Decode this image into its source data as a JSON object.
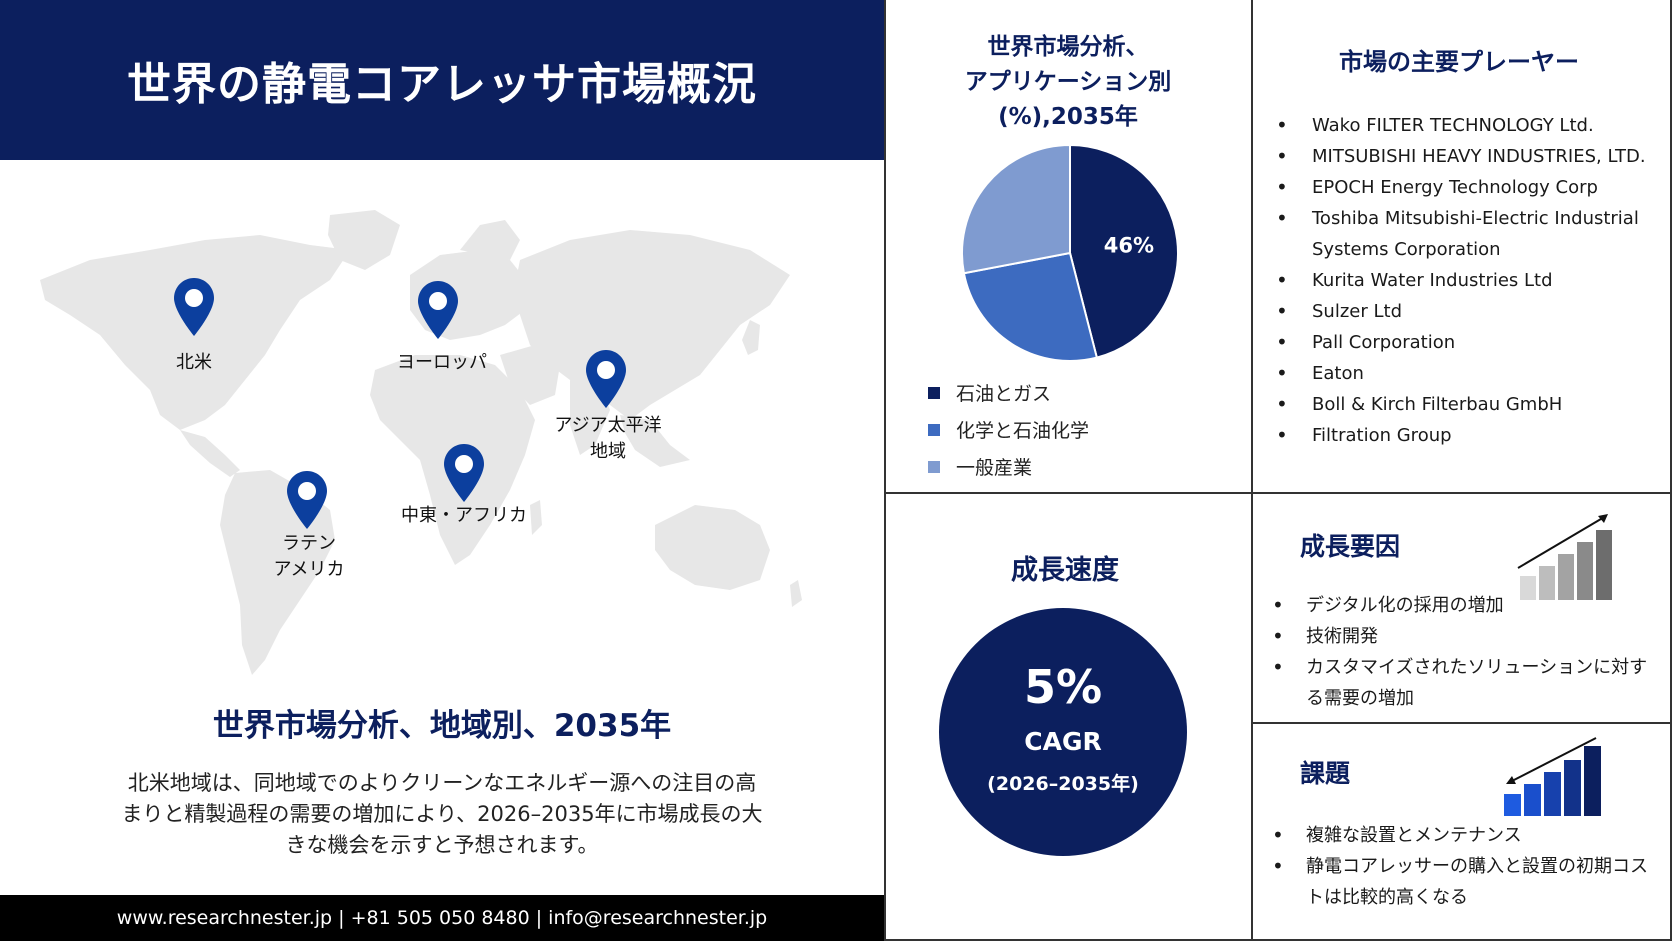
{
  "header": {
    "title": "世界の静電コアレッサ市場概況"
  },
  "map": {
    "pins": [
      {
        "label": "北米"
      },
      {
        "label": "ヨーロッパ"
      },
      {
        "label": "アジア太平洋\n地域"
      },
      {
        "label": "中東・アフリカ"
      },
      {
        "label": "ラテン\nアメリカ"
      }
    ]
  },
  "region_section": {
    "title": "世界市場分析、地域別、2035年",
    "description": "北米地域は、同地域でのよりクリーンなエネルギー源への注目の高まりと精製過程の需要の増加により、2026–2035年に市場成長の大きな機会を示すと予想されます。"
  },
  "footer": {
    "text": "www.researchnester.jp | +81 505 050 8480 | info@researchnester.jp"
  },
  "chart_data": {
    "type": "pie",
    "title": "世界市場分析、\nアプリケーション別\n(%),2035年",
    "categories": [
      "石油とガス",
      "化学と石油化学",
      "一般産業"
    ],
    "values": [
      46,
      26,
      28
    ],
    "data_labels": [
      "46%",
      "",
      ""
    ],
    "colors": [
      "#0c1f5e",
      "#3d6bc0",
      "#7f9bd0"
    ],
    "legend_position": "bottom-left"
  },
  "players": {
    "title": "市場の主要プレーヤー",
    "items": [
      "Wako FILTER TECHNOLOGY Ltd.",
      "MITSUBISHI HEAVY INDUSTRIES, LTD.",
      "EPOCH Energy Technology Corp",
      "Toshiba Mitsubishi-Electric Industrial Systems Corporation",
      "Kurita Water Industries Ltd",
      "Sulzer Ltd",
      "Pall Corporation",
      "Eaton",
      "Boll & Kirch Filterbau GmbH",
      "Filtration Group"
    ]
  },
  "growth_rate": {
    "title": "成長速度",
    "value": "5%",
    "label": "CAGR",
    "period": "(2026–2035年)",
    "color": "#0c1f5e"
  },
  "growth_drivers": {
    "title": "成長要因",
    "icon": "bar-chart-rising-icon",
    "items": [
      "デジタル化の採用の増加",
      "技術開発",
      "カスタマイズされたソリューションに対する需要の増加"
    ]
  },
  "challenges": {
    "title": "課題",
    "icon": "bar-chart-falling-icon",
    "items": [
      "複雑な設置とメンテナンス",
      "静電コアレッサーの購入と設置の初期コストは比較的高くなる"
    ]
  }
}
